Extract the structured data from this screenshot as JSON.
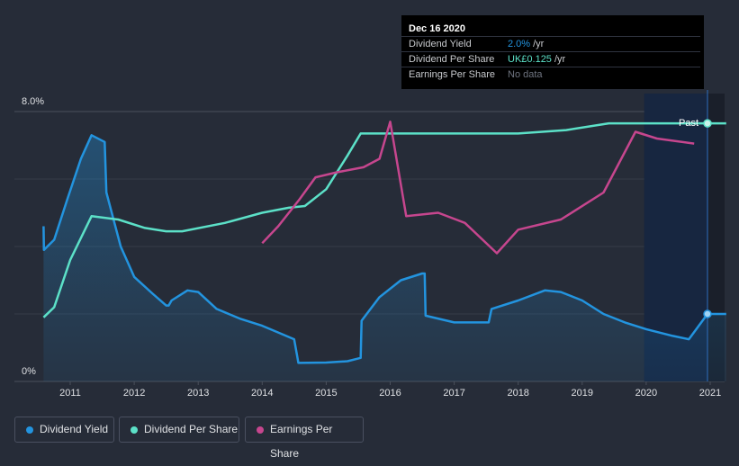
{
  "chart_data": {
    "type": "line",
    "y_axis": {
      "top_label": "8.0%",
      "bottom_label": "0%",
      "range_percent": [
        0,
        8.0
      ]
    },
    "x_axis": {
      "tick_labels": [
        "2011",
        "2012",
        "2013",
        "2014",
        "2015",
        "2016",
        "2017",
        "2018",
        "2019",
        "2020",
        "2021"
      ]
    },
    "annotation": "Past",
    "series": [
      {
        "name": "Dividend Yield",
        "color": "#2394df",
        "unit": "%",
        "points": [
          [
            "2010-08-01",
            4.6
          ],
          [
            "2010-08-03",
            3.9
          ],
          [
            "2010-10-01",
            4.2
          ],
          [
            "2010-12-15",
            5.4
          ],
          [
            "2011-03-01",
            6.6
          ],
          [
            "2011-05-01",
            7.3
          ],
          [
            "2011-07-15",
            7.1
          ],
          [
            "2011-07-25",
            5.6
          ],
          [
            "2011-10-15",
            4.0
          ],
          [
            "2012-01-01",
            3.1
          ],
          [
            "2012-04-15",
            2.6
          ],
          [
            "2012-07-01",
            2.25
          ],
          [
            "2012-07-15",
            2.25
          ],
          [
            "2012-08-01",
            2.4
          ],
          [
            "2012-11-01",
            2.7
          ],
          [
            "2013-01-01",
            2.65
          ],
          [
            "2013-04-15",
            2.15
          ],
          [
            "2013-09-01",
            1.85
          ],
          [
            "2014-01-01",
            1.65
          ],
          [
            "2014-04-01",
            1.45
          ],
          [
            "2014-07-01",
            1.25
          ],
          [
            "2014-07-25",
            0.55
          ],
          [
            "2015-01-01",
            0.56
          ],
          [
            "2015-05-01",
            0.6
          ],
          [
            "2015-07-15",
            0.7
          ],
          [
            "2015-07-20",
            1.8
          ],
          [
            "2015-11-01",
            2.5
          ],
          [
            "2016-03-01",
            3.0
          ],
          [
            "2016-07-01",
            3.2
          ],
          [
            "2016-07-15",
            3.2
          ],
          [
            "2016-07-20",
            1.95
          ],
          [
            "2017-01-01",
            1.75
          ],
          [
            "2017-05-01",
            1.75
          ],
          [
            "2017-07-15",
            1.75
          ],
          [
            "2017-08-01",
            2.15
          ],
          [
            "2018-01-01",
            2.4
          ],
          [
            "2018-06-01",
            2.7
          ],
          [
            "2018-09-01",
            2.65
          ],
          [
            "2019-01-01",
            2.4
          ],
          [
            "2019-05-01",
            2.0
          ],
          [
            "2019-09-01",
            1.75
          ],
          [
            "2020-01-01",
            1.55
          ],
          [
            "2020-06-01",
            1.35
          ],
          [
            "2020-09-01",
            1.25
          ],
          [
            "2020-12-16",
            2.0
          ],
          [
            "2021-04-01",
            2.0
          ]
        ]
      },
      {
        "name": "Dividend Per Share",
        "color": "#5ce1c8",
        "points": [
          [
            "2010-08-01",
            1.9
          ],
          [
            "2010-10-01",
            2.2
          ],
          [
            "2011-01-01",
            3.6
          ],
          [
            "2011-05-01",
            4.9
          ],
          [
            "2011-10-01",
            4.8
          ],
          [
            "2012-03-01",
            4.55
          ],
          [
            "2012-07-01",
            4.45
          ],
          [
            "2012-10-01",
            4.45
          ],
          [
            "2013-06-01",
            4.7
          ],
          [
            "2014-01-01",
            5.0
          ],
          [
            "2014-06-01",
            5.15
          ],
          [
            "2014-09-01",
            5.2
          ],
          [
            "2015-01-01",
            5.7
          ],
          [
            "2015-05-01",
            6.7
          ],
          [
            "2015-07-15",
            7.35
          ],
          [
            "2016-01-01",
            7.35
          ],
          [
            "2017-01-01",
            7.35
          ],
          [
            "2018-01-01",
            7.35
          ],
          [
            "2018-10-01",
            7.45
          ],
          [
            "2019-06-01",
            7.65
          ],
          [
            "2020-01-01",
            7.65
          ],
          [
            "2020-12-16",
            7.65
          ],
          [
            "2021-04-01",
            7.65
          ]
        ]
      },
      {
        "name": "Earnings Per Share",
        "color": "#c6468e",
        "points": [
          [
            "2014-01-01",
            4.1
          ],
          [
            "2014-04-01",
            4.6
          ],
          [
            "2014-08-01",
            5.4
          ],
          [
            "2014-11-01",
            6.05
          ],
          [
            "2015-03-01",
            6.2
          ],
          [
            "2015-08-01",
            6.35
          ],
          [
            "2015-11-01",
            6.6
          ],
          [
            "2016-01-01",
            7.7
          ],
          [
            "2016-04-01",
            4.9
          ],
          [
            "2016-10-01",
            5.0
          ],
          [
            "2017-03-01",
            4.7
          ],
          [
            "2017-09-01",
            3.8
          ],
          [
            "2018-01-01",
            4.5
          ],
          [
            "2018-09-01",
            4.8
          ],
          [
            "2019-05-01",
            5.6
          ],
          [
            "2019-11-01",
            7.4
          ],
          [
            "2020-03-01",
            7.2
          ],
          [
            "2020-10-01",
            7.05
          ]
        ]
      }
    ]
  },
  "tooltip": {
    "date": "Dec 16 2020",
    "rows": [
      {
        "label": "Dividend Yield",
        "value": "2.0%",
        "unit": "/yr",
        "color": "#2394df"
      },
      {
        "label": "Dividend Per Share",
        "value": "UK£0.125",
        "unit": "/yr",
        "color": "#5ce1c8"
      },
      {
        "label": "Earnings Per Share",
        "value": "No data",
        "unit": "",
        "color": "#6f7480"
      }
    ]
  },
  "legend": [
    {
      "label": "Dividend Yield",
      "color": "#2394df"
    },
    {
      "label": "Dividend Per Share",
      "color": "#5ce1c8"
    },
    {
      "label": "Earnings Per Share",
      "color": "#c6468e"
    }
  ]
}
